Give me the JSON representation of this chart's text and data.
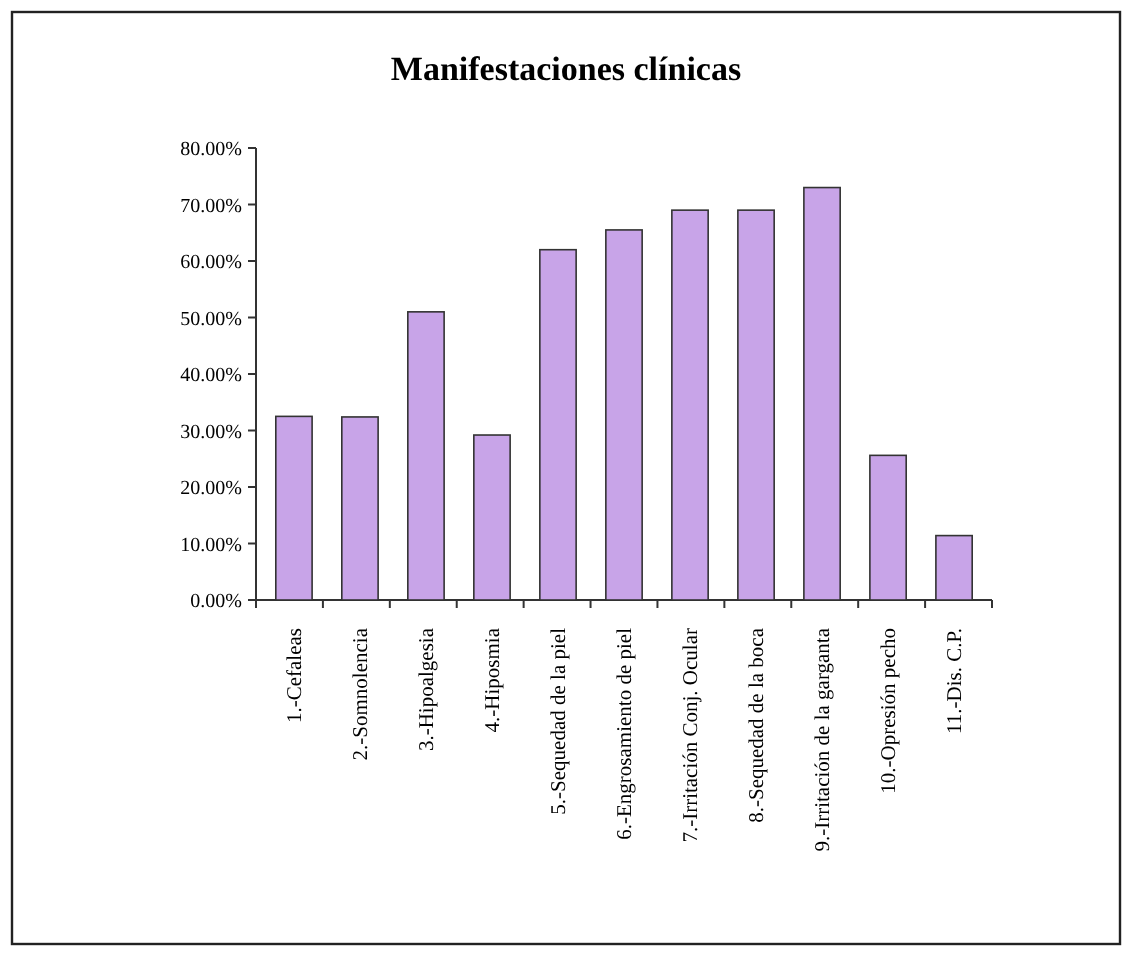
{
  "chart_data": {
    "type": "bar",
    "title": "Manifestaciones clínicas",
    "categories": [
      "1.-Cefaleas",
      "2.-Somnolencia",
      "3.-Hipoalgesia",
      "4.-Hiposmia",
      "5.-Sequedad de la piel",
      "6.-Engrosamiento de piel",
      "7.-Irritación Conj. Ocular",
      "8.-Sequedad de la boca",
      "9.-Irritación de la garganta",
      "10.-Opresión pecho",
      "11.-Dis. C.P."
    ],
    "values": [
      32.5,
      32.4,
      51,
      29.2,
      62,
      65.5,
      69,
      69,
      73,
      25.6,
      11.4
    ],
    "color": "#c8a4e8",
    "ylim": [
      0,
      80
    ],
    "yticks": [
      {
        "value": 0,
        "label": "0.00%"
      },
      {
        "value": 10,
        "label": "10.00%"
      },
      {
        "value": 20,
        "label": "20.00%"
      },
      {
        "value": 30,
        "label": "30.00%"
      },
      {
        "value": 40,
        "label": "40.00%"
      },
      {
        "value": 50,
        "label": "50.00%"
      },
      {
        "value": 60,
        "label": "60.00%"
      },
      {
        "value": 70,
        "label": "70.00%"
      },
      {
        "value": 80,
        "label": "80.00%"
      }
    ],
    "grid": false
  }
}
